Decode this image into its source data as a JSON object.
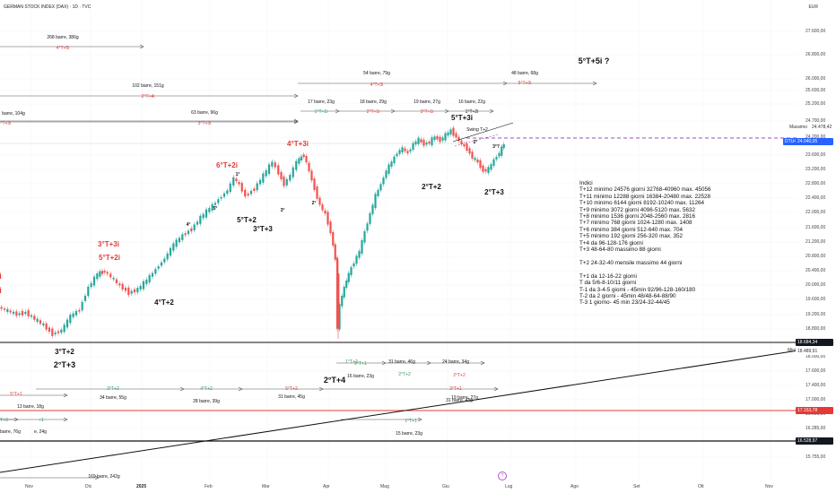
{
  "header": {
    "title": "GERMAN STOCK INDEX (DAX) · 1D · TVC",
    "currency": "EUR"
  },
  "price_axis": {
    "ticks": [
      "27.600,00",
      "26.800,00",
      "26.000,00",
      "25.600,00",
      "25.200,00",
      "24.700,00",
      "24.200,00",
      "23.600,00",
      "23.200,00",
      "22.800,00",
      "22.400,00",
      "22.000,00",
      "21.600,00",
      "21.200,00",
      "20.800,00",
      "20.400,00",
      "20.000,00",
      "19.600,00",
      "19.200,00",
      "18.800,00",
      "18.400,00",
      "18.000,00",
      "17.600,00",
      "17.400,00",
      "17.000,00",
      "16.600,00",
      "16.285,00",
      "16.005,00",
      "15.755,00"
    ],
    "massimo_label": "Massimo",
    "massimo_value": "24.478,42",
    "last_symbol": "DTU40",
    "last_value": "24.040,05",
    "badge_dark_1": "18.684,34",
    "badge_minimo": "18.489,91",
    "minimo_label": "Minimo",
    "badge_red": "17.153,78",
    "badge_dark_2": "16.528,97"
  },
  "time_axis": {
    "labels": [
      "Nov",
      "Dic",
      "2025",
      "Feb",
      "Mar",
      "Apr",
      "Mag",
      "Giu",
      "Lug",
      "Ago",
      "Set",
      "Ott",
      "Nov"
    ]
  },
  "colors": {
    "up": "#26a69a",
    "down": "#ef5350",
    "wave_red": "#e53935",
    "wave_green": "#2e9d5a",
    "black": "#111111",
    "purple_dash": "#7b1fa2",
    "badge_blue": "#2962ff"
  },
  "indici": {
    "lines": [
      "Indici",
      "T+12 minimo 24576 giorni 32768-40960 max. 45056",
      "T+11 minimo 12288 giorni 16384-20480 max. 22528",
      "T+10 minimo 6144 giorni 8192-10240 max. 11264",
      "T+9 minimo 3072 giorni 4096-5120 max. 5632",
      "T+8 minimo 1536 giorni 2048-2560 max. 2816",
      "T+7 minimo 768 giorni 1024-1280 max. 1408",
      "T+6 minimo 384 giorni 512-640 max. 704",
      "T+5 minimo 192 giorni 256-320 max. 352",
      "T+4 da 96-128-176 giorni",
      "T+3 48-64-80 massimo 88 giorni",
      "",
      "T+2 24-32-40 mensile massimo 44 giorni",
      "",
      "T+1 da 12-16-22 giorni",
      "T da 5/6-8-10/11 giorni",
      "T-1 da 3-4-5 giorni - 45min 92/96-128-160/180",
      "T-2 da 2 giorni - 45min 48/48-64-88/90",
      "T-3 1 giorno- 45 min 23/24-32-44/45"
    ]
  },
  "wave_labels": [
    {
      "text": "5°T+5i ?",
      "color": "black",
      "size": 9,
      "bold": true
    },
    {
      "text": "4°T+3i",
      "color": "red",
      "size": 8,
      "bold": true
    },
    {
      "text": "6°T+2i",
      "color": "red",
      "size": 8,
      "bold": true
    },
    {
      "text": "3°T+3i",
      "color": "red",
      "size": 8,
      "bold": true
    },
    {
      "text": "5°T+2i",
      "color": "red",
      "size": 8,
      "bold": true
    },
    {
      "text": "4i",
      "color": "red",
      "size": 9,
      "bold": true
    },
    {
      "text": "2i",
      "color": "red",
      "size": 9,
      "bold": true
    },
    {
      "text": "5°T+3i",
      "color": "black",
      "size": 8,
      "bold": true
    },
    {
      "text": "5°T+2",
      "color": "black",
      "size": 8,
      "bold": true
    },
    {
      "text": "3°T+3",
      "color": "black",
      "size": 8,
      "bold": true
    },
    {
      "text": "4°T+2",
      "color": "black",
      "size": 8,
      "bold": true
    },
    {
      "text": "3°T+2",
      "color": "black",
      "size": 8,
      "bold": true
    },
    {
      "text": "2°T+3",
      "color": "black",
      "size": 9,
      "bold": true
    },
    {
      "text": "2°T+2",
      "color": "black",
      "size": 8,
      "bold": true
    },
    {
      "text": "2°T+3",
      "color": "black",
      "size": 8,
      "bold": true
    },
    {
      "text": "2°T+4",
      "color": "black",
      "size": 9,
      "bold": true
    },
    {
      "text": "Swing T+2",
      "color": "black",
      "size": 5,
      "bold": false
    }
  ],
  "cycle_labels": [
    {
      "text": "268 barre, 386g",
      "color": "black"
    },
    {
      "text": "4°T+5i",
      "color": "red"
    },
    {
      "text": "102 barre, 151g",
      "color": "black"
    },
    {
      "text": "2°T+4i",
      "color": "red"
    },
    {
      "text": "barre, 104g",
      "color": "black"
    },
    {
      "text": "5°T+3i",
      "color": "red"
    },
    {
      "text": "63 barre, 96g",
      "color": "black"
    },
    {
      "text": "3°T+3i",
      "color": "red"
    },
    {
      "text": "54 barre, 79g",
      "color": "black"
    },
    {
      "text": "4°T+3i",
      "color": "red"
    },
    {
      "text": "48 barre, 68g",
      "color": "black"
    },
    {
      "text": "5°T+3i",
      "color": "red"
    },
    {
      "text": "17 barre, 23g",
      "color": "black"
    },
    {
      "text": "1°T+1i",
      "color": "green"
    },
    {
      "text": "18 barre, 29g",
      "color": "black"
    },
    {
      "text": "2°T+1i",
      "color": "red"
    },
    {
      "text": "19 barre, 27g",
      "color": "black"
    },
    {
      "text": "3°T+1i",
      "color": "red"
    },
    {
      "text": "16 barre, 22g",
      "color": "black"
    },
    {
      "text": "1°T+2i",
      "color": "black"
    },
    {
      "text": "3°T+2",
      "color": "green"
    },
    {
      "text": "34 barre, 55g",
      "color": "black"
    },
    {
      "text": "4°T+2",
      "color": "green"
    },
    {
      "text": "28 barre, 39g",
      "color": "black"
    },
    {
      "text": "5°T+2",
      "color": "red"
    },
    {
      "text": "31 barre, 45g",
      "color": "black"
    },
    {
      "text": "1°T+2",
      "color": "green"
    },
    {
      "text": "31 barre, 46g",
      "color": "black"
    },
    {
      "text": "2°T+2",
      "color": "green"
    },
    {
      "text": "24 barre, 34g",
      "color": "black"
    },
    {
      "text": "2°T+2",
      "color": "red"
    },
    {
      "text": "31 barre, 43g",
      "color": "black"
    },
    {
      "text": "5°T+1",
      "color": "red"
    },
    {
      "text": "13 barre, 18g",
      "color": "black"
    },
    {
      "text": "+1",
      "color": "green"
    },
    {
      "text": "e, 24g",
      "color": "black"
    },
    {
      "text": "1°T+3",
      "color": "green"
    },
    {
      "text": "51 barre, 76g",
      "color": "black"
    },
    {
      "text": "1°T+1",
      "color": "green"
    },
    {
      "text": "15 barre, 23g",
      "color": "black"
    },
    {
      "text": "2°T+1",
      "color": "green"
    },
    {
      "text": "16 barre, 23g",
      "color": "black"
    },
    {
      "text": "3°T+1",
      "color": "red"
    },
    {
      "text": "19 barre, 27g",
      "color": "black"
    },
    {
      "text": "169 barre, 242g",
      "color": "black"
    }
  ],
  "small_markers": [
    "1°",
    "2°",
    "3°",
    "4°",
    "5°",
    "3°?",
    "2°"
  ],
  "events": {
    "pin": "?"
  }
}
